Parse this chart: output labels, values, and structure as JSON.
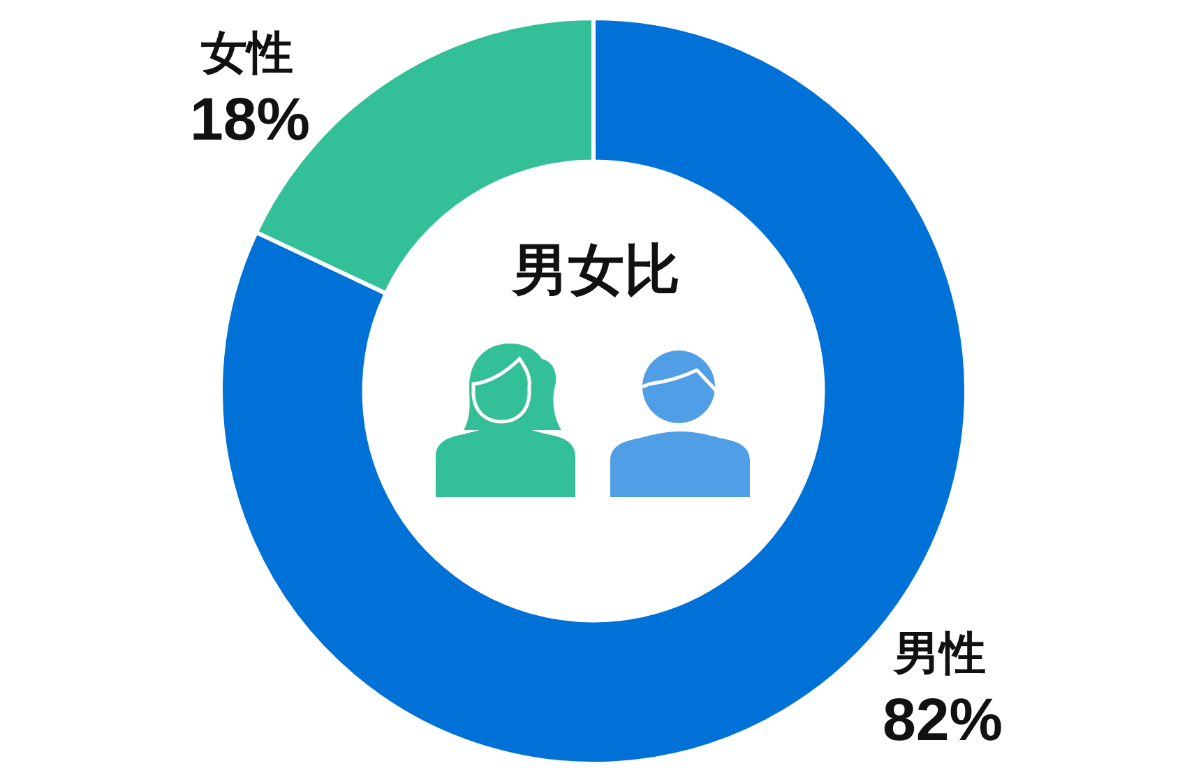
{
  "chart_data": {
    "type": "donut",
    "title": "男女比",
    "categories": [
      "男性",
      "女性"
    ],
    "values": [
      82,
      18
    ],
    "colors": [
      "#0071d6",
      "#33bf98"
    ],
    "value_labels": [
      "82%",
      "18%"
    ]
  }
}
